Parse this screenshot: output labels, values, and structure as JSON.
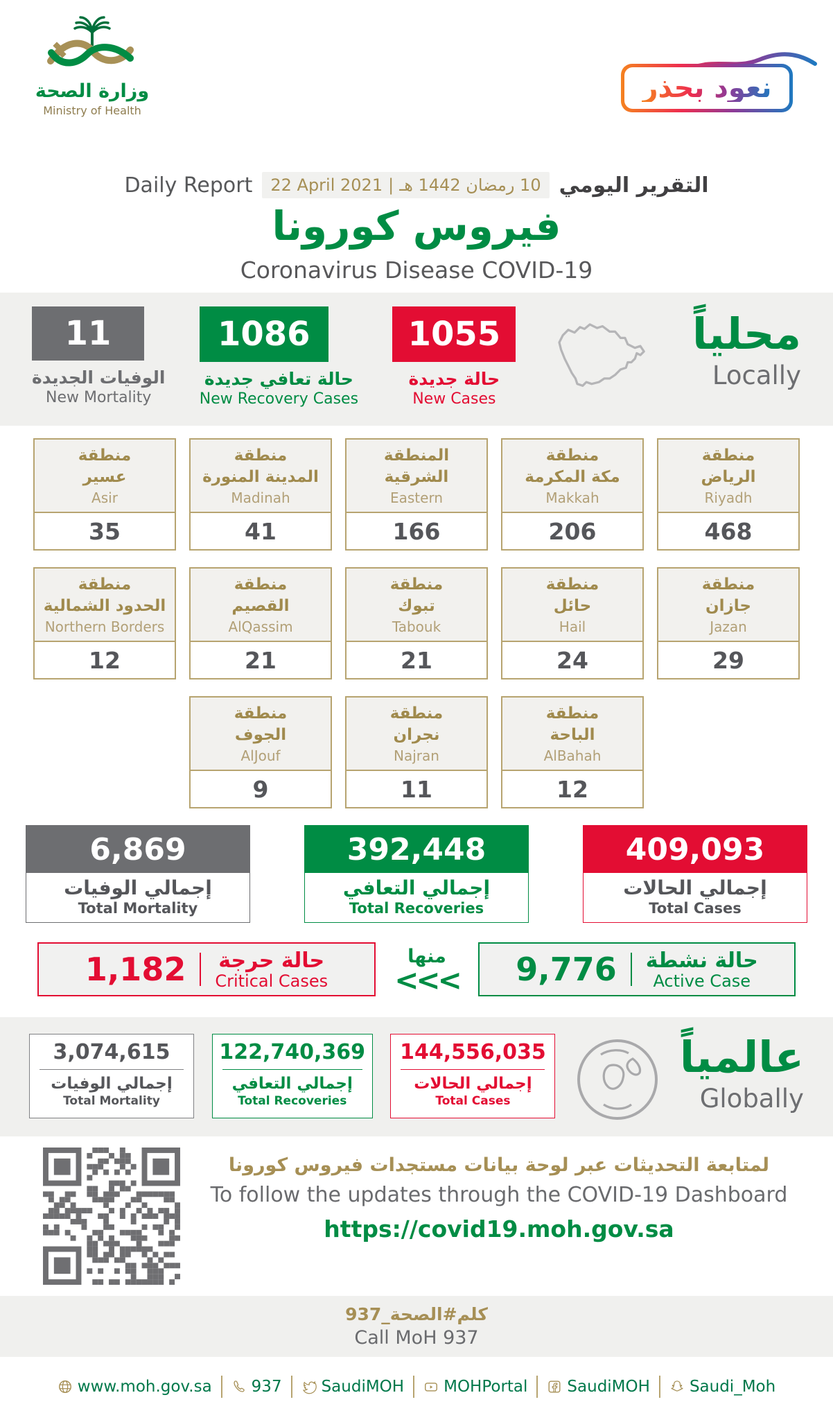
{
  "brand": {
    "ministry_ar": "وزارة الصحة",
    "ministry_en": "Ministry of Health",
    "badge_ar": "نعود بحذر"
  },
  "report": {
    "label_en": "Daily Report",
    "label_ar": "التقرير اليومي",
    "date_en": "22 April 2021",
    "date_sep": "|",
    "date_ar": "10 رمضان 1442 هـ",
    "title_ar": "فيروس كورونا",
    "title_en": "Coronavirus Disease COVID-19"
  },
  "locally": {
    "heading_ar": "محلياً",
    "heading_en": "Locally",
    "stats": [
      {
        "value": "11",
        "label_ar": "الوفيات الجديدة",
        "label_en": "New Mortality"
      },
      {
        "value": "1086",
        "label_ar": "حالة تعافي جديدة",
        "label_en": "New Recovery Cases"
      },
      {
        "value": "1055",
        "label_ar": "حالة جديدة",
        "label_en": "New Cases"
      }
    ]
  },
  "regions": [
    {
      "ar1": "منطقة",
      "ar2": "عسير",
      "en": "Asir",
      "value": "35"
    },
    {
      "ar1": "منطقة",
      "ar2": "المدينة المنورة",
      "en": "Madinah",
      "value": "41"
    },
    {
      "ar1": "المنطقة",
      "ar2": "الشرقية",
      "en": "Eastern",
      "value": "166"
    },
    {
      "ar1": "منطقة",
      "ar2": "مكة المكرمة",
      "en": "Makkah",
      "value": "206"
    },
    {
      "ar1": "منطقة",
      "ar2": "الرياض",
      "en": "Riyadh",
      "value": "468"
    },
    {
      "ar1": "منطقة",
      "ar2": "الحدود الشمالية",
      "en": "Northern Borders",
      "value": "12"
    },
    {
      "ar1": "منطقة",
      "ar2": "القصيم",
      "en": "AlQassim",
      "value": "21"
    },
    {
      "ar1": "منطقة",
      "ar2": "تبوك",
      "en": "Tabouk",
      "value": "21"
    },
    {
      "ar1": "منطقة",
      "ar2": "حائل",
      "en": "Hail",
      "value": "24"
    },
    {
      "ar1": "منطقة",
      "ar2": "جازان",
      "en": "Jazan",
      "value": "29"
    },
    {
      "ar1": "منطقة",
      "ar2": "الجوف",
      "en": "AlJouf",
      "value": "9"
    },
    {
      "ar1": "منطقة",
      "ar2": "نجران",
      "en": "Najran",
      "value": "11"
    },
    {
      "ar1": "منطقة",
      "ar2": "الباحة",
      "en": "AlBahah",
      "value": "12"
    }
  ],
  "totals": [
    {
      "value": "6,869",
      "label_ar": "إجمالي الوفيات",
      "label_en": "Total Mortality"
    },
    {
      "value": "392,448",
      "label_ar": "إجمالي التعافي",
      "label_en": "Total Recoveries"
    },
    {
      "value": "409,093",
      "label_ar": "إجمالي الحالات",
      "label_en": "Total Cases"
    }
  ],
  "active_row": {
    "critical_value": "1,182",
    "critical_ar": "حالة حرجة",
    "critical_en": "Critical Cases",
    "of_which_ar": "منها",
    "chevrons": "<<<",
    "active_value": "9,776",
    "active_ar": "حالة نشطة",
    "active_en": "Active Case"
  },
  "globally": {
    "heading_ar": "عالمياً",
    "heading_en": "Globally",
    "items": [
      {
        "value": "3,074,615",
        "label_ar": "إجمالي الوفيات",
        "label_en": "Total Mortality"
      },
      {
        "value": "122,740,369",
        "label_ar": "إجمالي التعافي",
        "label_en": "Total Recoveries"
      },
      {
        "value": "144,556,035",
        "label_ar": "إجمالي الحالات",
        "label_en": "Total Cases"
      }
    ]
  },
  "dashboard": {
    "line_ar": "لمتابعة التحديثات عبر لوحة بيانات مستجدات فيروس كورونا",
    "line_en": "To follow the updates through the COVID-19 Dashboard",
    "url": "https://covid19.moh.gov.sa"
  },
  "call_moh": {
    "ar": "كلم#الصحة_937",
    "en": "Call MoH 937"
  },
  "footer": {
    "items": [
      {
        "icon": "globe-icon",
        "label": "www.moh.gov.sa"
      },
      {
        "icon": "phone-icon",
        "label": "937"
      },
      {
        "icon": "twitter-icon",
        "label": "SaudiMOH"
      },
      {
        "icon": "youtube-icon",
        "label": "MOHPortal"
      },
      {
        "icon": "facebook-icon",
        "label": "SaudiMOH"
      },
      {
        "icon": "snapchat-icon",
        "label": "Saudi_Moh"
      }
    ]
  },
  "colors": {
    "green": "#008c44",
    "red": "#e30d33",
    "gray": "#6d6e71",
    "gold": "#a68f55"
  }
}
